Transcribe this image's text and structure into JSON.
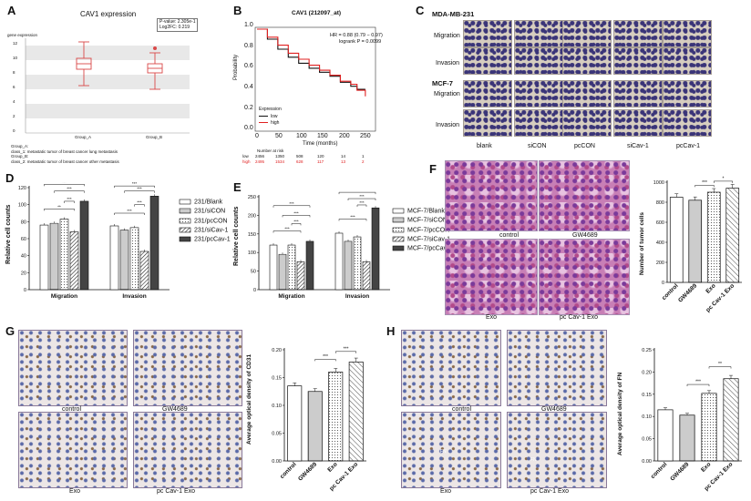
{
  "panelA": {
    "letter": "A",
    "title": "CAV1 expression",
    "ylabel": "gene expression",
    "yticks": [
      "12",
      "10",
      "8",
      "6",
      "4",
      "2",
      "0"
    ],
    "stat_lines": [
      "P-value: 2.305e-1",
      "Log2FC: 0.219"
    ],
    "groups": [
      "Group_A",
      "Group_B"
    ],
    "notes": [
      "Group_A:",
      "class_1: metastatic tumor of breast cancer lung metastasis",
      "Group_B:",
      "class_2: metastatic tumor of breast cancer other metastasis"
    ]
  },
  "panelB": {
    "letter": "B",
    "title": "CAV1 (212097_at)",
    "ylabel": "Probability",
    "xlabel": "Time (months)",
    "yticks": [
      "0.0",
      "0.2",
      "0.4",
      "0.6",
      "0.8",
      "1.0"
    ],
    "xticks": [
      "0",
      "50",
      "100",
      "150",
      "200",
      "250"
    ],
    "hr": "HR = 0.88 (0.79 − 0.97)",
    "logrank": "logrank P = 0.0099",
    "legend_title": "Expression",
    "legend_low": "low",
    "legend_high": "high",
    "risk_title": "Number at risk",
    "risk_low_label": "low",
    "risk_high_label": "high",
    "risk_low": [
      "2456",
      "1350",
      "508",
      "120",
      "14",
      "1"
    ],
    "risk_high": [
      "2495",
      "1534",
      "628",
      "117",
      "13",
      "2"
    ],
    "color_low": "#111111",
    "color_high": "#e02020"
  },
  "panelC": {
    "letter": "C",
    "cell1": "MDA-MB-231",
    "cell2": "MCF-7",
    "rows": [
      "Migration",
      "Invasion",
      "Migration",
      "Invasion"
    ],
    "cols": [
      "blank",
      "siCON",
      "pcCON",
      "siCav-1",
      "pcCav-1"
    ],
    "stain_color": "#5a4a8a"
  },
  "panelD": {
    "letter": "D",
    "ylabel": "Relative cell counts",
    "yticks": [
      "0",
      "20",
      "40",
      "60",
      "80",
      "100",
      "120"
    ],
    "groups": [
      "Migration",
      "Invasion"
    ],
    "legend": [
      "231/Blank",
      "231/siCON",
      "231/pcCON",
      "231/siCav-1",
      "231/pcCav-1"
    ],
    "sig": [
      "***",
      "***",
      "***",
      "**",
      "***",
      "***",
      "***",
      "***"
    ]
  },
  "panelE": {
    "letter": "E",
    "ylabel": "Relative cell counts",
    "yticks": [
      "0",
      "50",
      "100",
      "150",
      "200",
      "250"
    ],
    "groups": [
      "Migration",
      "Invasion"
    ],
    "legend": [
      "MCF-7/Blank",
      "MCF-7/siCON",
      "MCF-7/pcCON",
      "MCF-7/siCav-1",
      "MCF-7/pcCav-1"
    ],
    "sig": [
      "***",
      "***",
      "***",
      "***",
      "***",
      "***",
      "***",
      "***"
    ]
  },
  "panelF": {
    "letter": "F",
    "images": [
      "control",
      "GW4689",
      "Exo",
      "pc Cav-1 Exo"
    ],
    "ylabel": "Number of tumor cells",
    "yticks": [
      "0",
      "200",
      "400",
      "600",
      "800",
      "1000"
    ],
    "categories": [
      "control",
      "GW4689",
      "Exo",
      "pc Cav-1 Exo"
    ],
    "sig": [
      "***",
      "*"
    ]
  },
  "panelG": {
    "letter": "G",
    "images": [
      "control",
      "GW4689",
      "Exo",
      "pc Cav-1 Exo"
    ],
    "ylabel": "Average optical density of CD31",
    "yticks": [
      "0.00",
      "0.05",
      "0.10",
      "0.15",
      "0.20"
    ],
    "categories": [
      "control",
      "GW4689",
      "Exo",
      "pc Cav-1 Exo"
    ],
    "sig": [
      "***",
      "***"
    ]
  },
  "panelH": {
    "letter": "H",
    "images": [
      "control",
      "GW4689",
      "Exo",
      "pc Cav-1 Exo"
    ],
    "ylabel": "Average optical density of FN",
    "yticks": [
      "0.00",
      "0.05",
      "0.10",
      "0.15",
      "0.20",
      "0.25"
    ],
    "categories": [
      "control",
      "GW4689",
      "Exo",
      "pc Cav-1 Exo"
    ],
    "sig": [
      "***",
      "**"
    ],
    "arrow_label": "FN"
  },
  "chart_data": [
    {
      "type": "line",
      "title": "CAV1 (212097_at)",
      "xlabel": "Time (months)",
      "ylabel": "Probability",
      "xlim": [
        0,
        280
      ],
      "ylim": [
        0,
        1
      ],
      "series": [
        {
          "name": "low",
          "x": [
            0,
            25,
            50,
            75,
            100,
            125,
            150,
            175,
            200,
            225,
            240,
            260
          ],
          "y": [
            1.0,
            0.9,
            0.8,
            0.72,
            0.66,
            0.61,
            0.57,
            0.53,
            0.47,
            0.43,
            0.4,
            0.4
          ]
        },
        {
          "name": "high",
          "x": [
            0,
            25,
            50,
            75,
            100,
            125,
            150,
            175,
            200,
            225,
            240,
            260
          ],
          "y": [
            1.0,
            0.92,
            0.84,
            0.76,
            0.7,
            0.64,
            0.59,
            0.54,
            0.48,
            0.45,
            0.39,
            0.33
          ]
        }
      ]
    },
    {
      "type": "bar",
      "ylabel": "Relative cell counts",
      "ylim": [
        0,
        120
      ],
      "categories": [
        "Migration",
        "Invasion"
      ],
      "series": [
        {
          "name": "231/Blank",
          "values": [
            76,
            75
          ]
        },
        {
          "name": "231/siCON",
          "values": [
            78,
            70
          ]
        },
        {
          "name": "231/pcCON",
          "values": [
            83,
            73
          ]
        },
        {
          "name": "231/siCav-1",
          "values": [
            68,
            45
          ]
        },
        {
          "name": "231/pcCav-1",
          "values": [
            104,
            110
          ]
        }
      ]
    },
    {
      "type": "bar",
      "ylabel": "Relative cell counts",
      "ylim": [
        0,
        250
      ],
      "categories": [
        "Migration",
        "Invasion"
      ],
      "series": [
        {
          "name": "MCF-7/Blank",
          "values": [
            120,
            152
          ]
        },
        {
          "name": "MCF-7/siCON",
          "values": [
            95,
            130
          ]
        },
        {
          "name": "MCF-7/pcCON",
          "values": [
            120,
            142
          ]
        },
        {
          "name": "MCF-7/siCav-1",
          "values": [
            75,
            75
          ]
        },
        {
          "name": "MCF-7/pcCav-1",
          "values": [
            130,
            220
          ]
        }
      ]
    },
    {
      "type": "bar",
      "ylabel": "Number of tumor cells",
      "ylim": [
        0,
        1000
      ],
      "categories": [
        "control",
        "GW4689",
        "Exo",
        "pc Cav-1 Exo"
      ],
      "values": [
        850,
        820,
        900,
        940
      ]
    },
    {
      "type": "bar",
      "ylabel": "Average optical density of CD31",
      "ylim": [
        0,
        0.2
      ],
      "categories": [
        "control",
        "GW4689",
        "Exo",
        "pc Cav-1 Exo"
      ],
      "values": [
        0.135,
        0.125,
        0.16,
        0.178
      ]
    },
    {
      "type": "bar",
      "ylabel": "Average optical density of FN",
      "ylim": [
        0,
        0.25
      ],
      "categories": [
        "control",
        "GW4689",
        "Exo",
        "pc Cav-1 Exo"
      ],
      "values": [
        0.115,
        0.103,
        0.152,
        0.185
      ]
    }
  ]
}
